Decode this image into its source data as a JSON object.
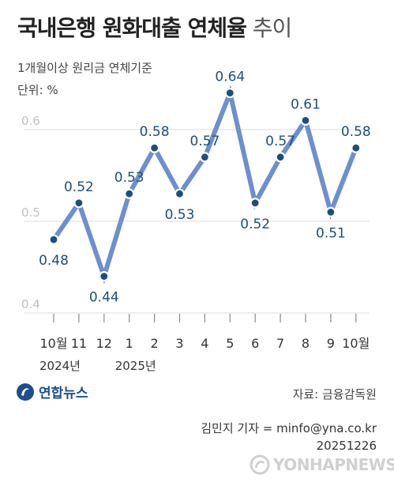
{
  "header": {
    "title_main": "국내은행 원화대출 연체율",
    "title_suffix": "추이",
    "subtitle": "1개월이상 원리금 연체기준",
    "unit": "단위: %"
  },
  "chart_data": {
    "type": "line",
    "title": "국내은행 원화대출 연체율 추이",
    "categories": [
      "10월",
      "11",
      "12",
      "1",
      "2",
      "3",
      "4",
      "5",
      "6",
      "7",
      "8",
      "9",
      "10월"
    ],
    "year_labels": [
      {
        "index": 0,
        "label": "2024년"
      },
      {
        "index": 3,
        "label": "2025년"
      }
    ],
    "values": [
      0.48,
      0.52,
      0.44,
      0.53,
      0.58,
      0.53,
      0.57,
      0.64,
      0.52,
      0.57,
      0.61,
      0.51,
      0.58
    ],
    "label_position": [
      "below",
      "above",
      "below",
      "above",
      "above",
      "below",
      "above",
      "above",
      "below",
      "above",
      "above",
      "below",
      "above"
    ],
    "yticks": [
      "0.4",
      "0.5",
      "0.6"
    ],
    "ylim": [
      0.4,
      0.6
    ],
    "grid": true,
    "colors": {
      "line": "#6f8fcc",
      "label": "#1f4e79",
      "grid": "#dcdcdc",
      "tick": "#c2c2c2"
    }
  },
  "footer": {
    "logo_text": "연합뉴스",
    "source": "자료: 금융감독원",
    "reporter": "김민지 기자 = minfo@yna.co.kr",
    "date": "20251226",
    "watermark_text": "YONHAPNEWS"
  }
}
